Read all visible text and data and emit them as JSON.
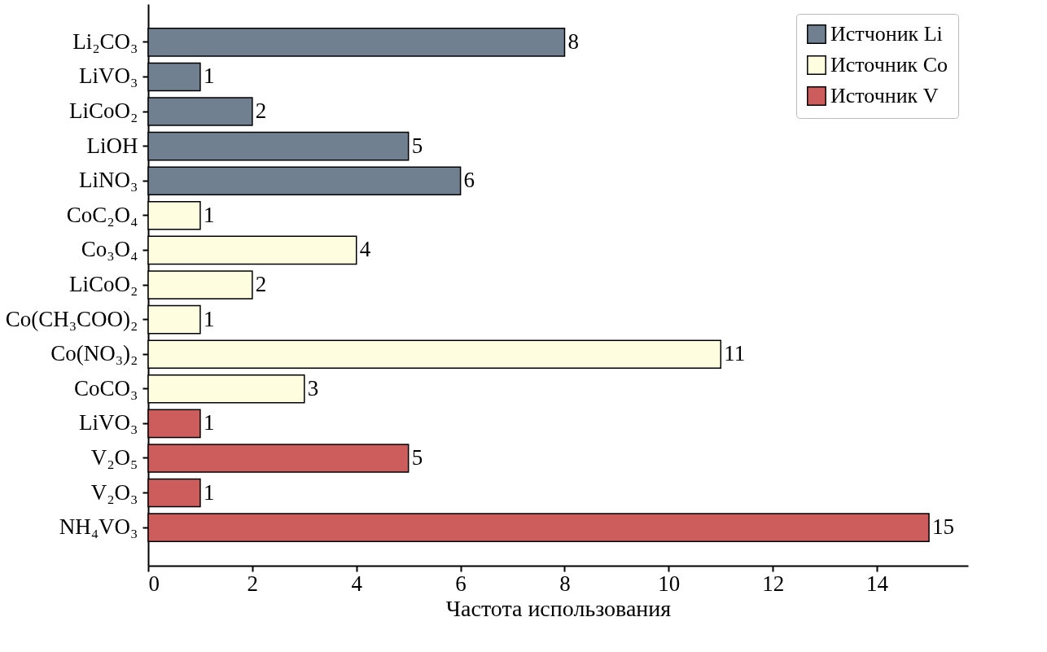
{
  "chart_data": {
    "type": "bar",
    "orientation": "horizontal",
    "xlabel": "Частота использования",
    "categories": [
      "Li₂CO₃",
      "LiVO₃",
      "LiCoO₂",
      "LiOH",
      "LiNO₃",
      "CoC₂O₄",
      "Co₃O₄",
      "LiCoO₂",
      "Co(CH₃COO)₂",
      "Co(NO₃)₂",
      "CoCO₃",
      "LiVO₃",
      "V₂O₅",
      "V₂O₃",
      "NH₄VO₃"
    ],
    "series": [
      {
        "name": "Истчоник Li",
        "color": "#708090",
        "values": [
          8,
          1,
          2,
          5,
          6,
          null,
          null,
          null,
          null,
          null,
          null,
          null,
          null,
          null,
          null
        ]
      },
      {
        "name": "Источник Co",
        "color": "#fffde0",
        "values": [
          null,
          null,
          null,
          null,
          null,
          1,
          4,
          2,
          1,
          11,
          3,
          null,
          null,
          null,
          null
        ]
      },
      {
        "name": "Источник V",
        "color": "#cd5c5c",
        "values": [
          null,
          null,
          null,
          null,
          null,
          null,
          null,
          null,
          null,
          null,
          null,
          1,
          5,
          1,
          15
        ]
      }
    ],
    "xlim": [
      0,
      15.75
    ],
    "xticks": [
      0,
      2,
      4,
      6,
      8,
      10,
      12,
      14
    ],
    "data_labels": true,
    "legend": "top right"
  }
}
